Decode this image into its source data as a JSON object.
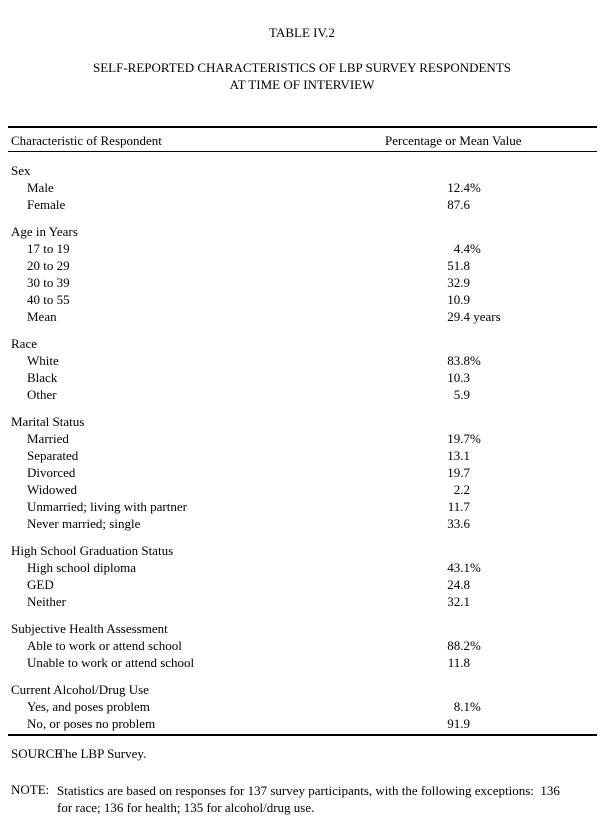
{
  "page": {
    "table_number": "TABLE IV.2",
    "title_line1": "SELF-REPORTED CHARACTERISTICS OF LBP SURVEY RESPONDENTS",
    "title_line2": "AT TIME OF INTERVIEW"
  },
  "table": {
    "columns": [
      "Characteristic of Respondent",
      "Percentage or Mean Value"
    ],
    "sections": [
      {
        "title": "Sex",
        "rows": [
          {
            "label": "Male",
            "value": "12.4",
            "suffix": "%"
          },
          {
            "label": "Female",
            "value": "87.6",
            "suffix": ""
          }
        ]
      },
      {
        "title": "Age in Years",
        "rows": [
          {
            "label": "17 to 19",
            "value": "4.4",
            "suffix": "%"
          },
          {
            "label": "20 to 29",
            "value": "51.8",
            "suffix": ""
          },
          {
            "label": "30 to 39",
            "value": "32.9",
            "suffix": ""
          },
          {
            "label": "40 to 55",
            "value": "10.9",
            "suffix": ""
          },
          {
            "label": "Mean",
            "value": "29.4",
            "suffix": " years"
          }
        ]
      },
      {
        "title": "Race",
        "rows": [
          {
            "label": "White",
            "value": "83.8",
            "suffix": "%"
          },
          {
            "label": "Black",
            "value": "10.3",
            "suffix": ""
          },
          {
            "label": "Other",
            "value": "5.9",
            "suffix": ""
          }
        ]
      },
      {
        "title": "Marital Status",
        "rows": [
          {
            "label": "Married",
            "value": "19.7",
            "suffix": "%"
          },
          {
            "label": "Separated",
            "value": "13.1",
            "suffix": ""
          },
          {
            "label": "Divorced",
            "value": "19.7",
            "suffix": ""
          },
          {
            "label": "Widowed",
            "value": "2.2",
            "suffix": ""
          },
          {
            "label": "Unmarried; living with partner",
            "value": "11.7",
            "suffix": ""
          },
          {
            "label": "Never married; single",
            "value": "33.6",
            "suffix": ""
          }
        ]
      },
      {
        "title": "High School Graduation Status",
        "rows": [
          {
            "label": "High school diploma",
            "value": "43.1",
            "suffix": "%"
          },
          {
            "label": "GED",
            "value": "24.8",
            "suffix": ""
          },
          {
            "label": "Neither",
            "value": "32.1",
            "suffix": ""
          }
        ]
      },
      {
        "title": "Subjective Health Assessment",
        "rows": [
          {
            "label": "Able to work or attend school",
            "value": "88.2",
            "suffix": "%"
          },
          {
            "label": "Unable to work or attend school",
            "value": "11.8",
            "suffix": ""
          }
        ]
      },
      {
        "title": "Current Alcohol/Drug Use",
        "rows": [
          {
            "label": "Yes, and poses problem",
            "value": "8.1",
            "suffix": "%"
          },
          {
            "label": "No, or poses no problem",
            "value": "91.9",
            "suffix": ""
          }
        ]
      }
    ]
  },
  "footer": {
    "source_label": "SOURCE",
    "source_text": "The LBP Survey.",
    "note_label": "NOTE:",
    "note_line1": "Statistics are based on responses for 137 survey participants, with the following exceptions:  136",
    "note_line2": "for race; 136 for health; 135 for alcohol/drug use."
  }
}
